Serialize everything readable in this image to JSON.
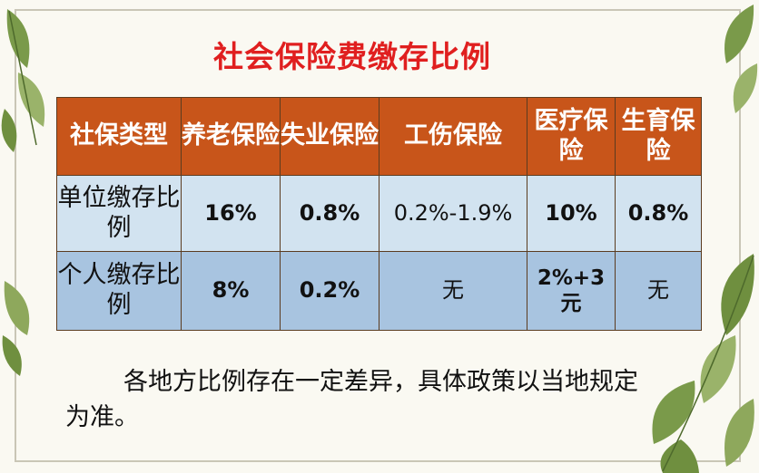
{
  "title": "社会保险费缴存比例",
  "table": {
    "headers": [
      "社保类型",
      "养老保险",
      "失业保险",
      "工伤保险",
      "医疗保险",
      "生育保险"
    ],
    "rows": [
      {
        "label": "单位缴存比例",
        "values": [
          "16%",
          "0.8%",
          "0.2%-1.9%",
          "10%",
          "0.8%"
        ]
      },
      {
        "label": "个人缴存比例",
        "values": [
          "8%",
          "0.2%",
          "无",
          "2%+3元",
          "无"
        ]
      }
    ]
  },
  "note": "各地方比例存在一定差异，具体政策以当地规定为准。",
  "colors": {
    "title": "#e01f1f",
    "header_bg": "#c8551a",
    "row1_bg": "#d2e3f0",
    "row2_bg": "#a8c4e0"
  }
}
